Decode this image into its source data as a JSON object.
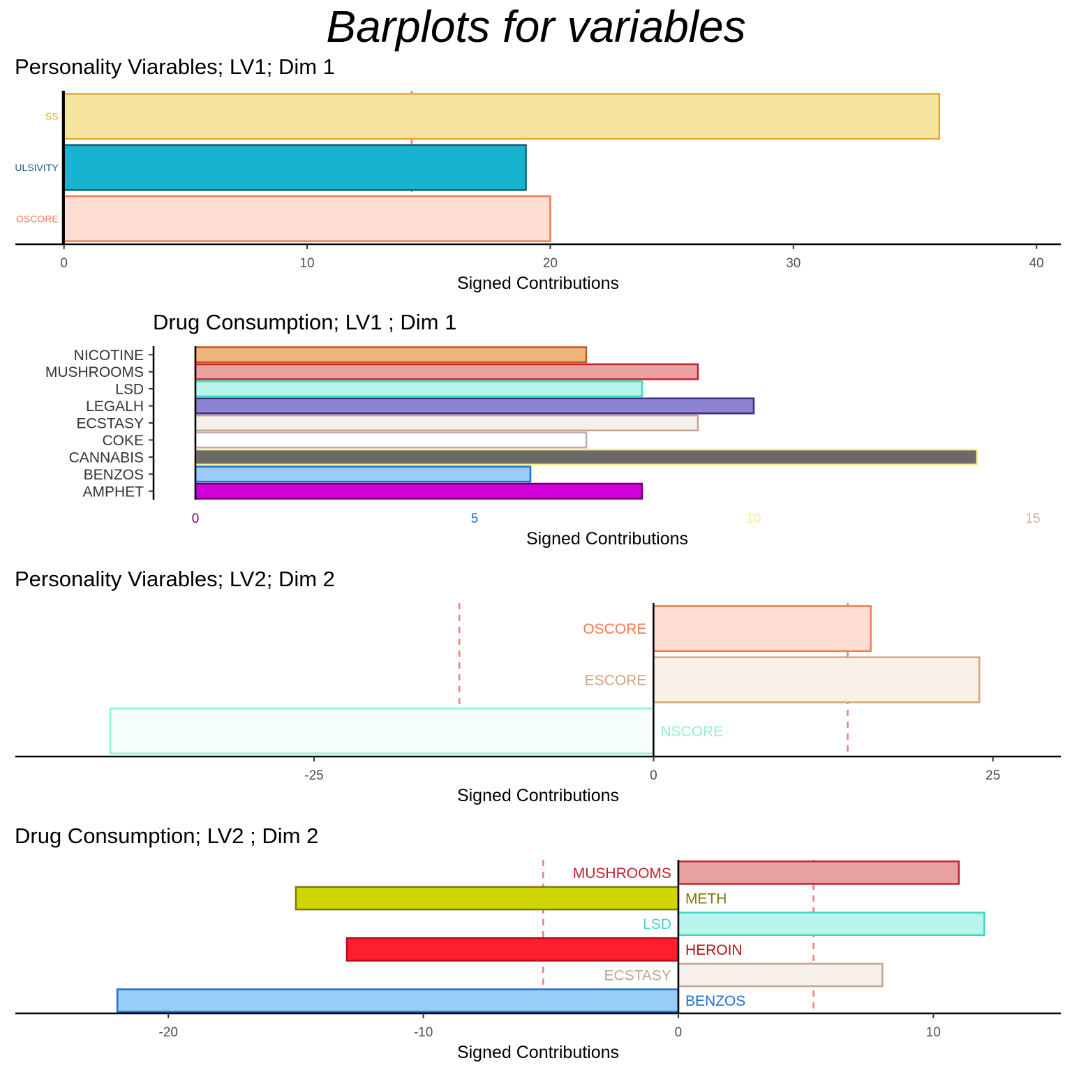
{
  "main_title": "Barplots for variables",
  "chart_data": [
    {
      "type": "bar",
      "orientation": "horizontal",
      "title": "Personality Viarables; LV1; Dim 1",
      "xlabel": "Signed Contributions",
      "ylabel": "",
      "xlim": [
        -2,
        41
      ],
      "xticks": [
        0,
        10,
        20,
        30,
        40
      ],
      "threshold": 14.3,
      "label_position": "left-outside",
      "categories": [
        "SS",
        "ULSIVITY",
        "OSCORE"
      ],
      "values": [
        36,
        19,
        20
      ],
      "fill_colors": [
        "#F7E49E",
        "#17B4D2",
        "#FEDDD2"
      ],
      "border_colors": [
        "#E8A92A",
        "#1A5C7A",
        "#F27A52"
      ],
      "label_colors": [
        "#E8A92A",
        "#1A5C7A",
        "#F27A52"
      ]
    },
    {
      "type": "bar",
      "orientation": "horizontal",
      "title": "Drug Consumption; LV1 ; Dim 1",
      "xlabel": "Signed Contributions",
      "ylabel": "",
      "xlim": [
        -0.75,
        15.5
      ],
      "xticks": [
        0,
        5,
        10,
        15
      ],
      "xtick_colors": [
        "#6B0070",
        "#1E6ED8",
        "#F5F08A",
        "#C9B6A6"
      ],
      "label_position": "axis",
      "categories": [
        "NICOTINE",
        "MUSHROOMS",
        "LSD",
        "LEGALH",
        "ECSTASY",
        "COKE",
        "CANNABIS",
        "BENZOS",
        "AMPHET"
      ],
      "values": [
        7,
        9,
        8,
        10,
        9,
        7,
        14,
        6,
        8
      ],
      "fill_colors": [
        "#EFB47E",
        "#E8A0A0",
        "#B8F5EC",
        "#8E83D0",
        "#F5F0EC",
        "#FFFFFF",
        "#6A6A6A",
        "#9ACCF8",
        "#D000D8"
      ],
      "border_colors": [
        "#C4581A",
        "#C42030",
        "#3ED8C2",
        "#3A2C80",
        "#C9A488",
        "#C4A8A8",
        "#F8F28A",
        "#1E6ED8",
        "#6B0070"
      ]
    },
    {
      "type": "bar",
      "orientation": "horizontal",
      "title": "Personality Viarables; LV2; Dim 2",
      "xlabel": "Signed Contributions",
      "ylabel": "",
      "xlim": [
        -47,
        30
      ],
      "xticks": [
        -25,
        0,
        25
      ],
      "threshold": 14.3,
      "label_position": "at-zero",
      "categories": [
        "OSCORE",
        "ESCORE",
        "NSCORE"
      ],
      "values": [
        16,
        24,
        -40
      ],
      "fill_colors": [
        "#FEDDD2",
        "#F9F0E7",
        "#F7FFFC"
      ],
      "border_colors": [
        "#F27A52",
        "#D4A67A",
        "#86F5D6"
      ],
      "label_colors": [
        "#F27A52",
        "#D4A67A",
        "#86F5D6"
      ]
    },
    {
      "type": "bar",
      "orientation": "horizontal",
      "title": "Drug Consumption; LV2 ; Dim 2",
      "xlabel": "Signed Contributions",
      "ylabel": "",
      "xlim": [
        -26,
        15
      ],
      "xticks": [
        -20,
        -10,
        0,
        10
      ],
      "threshold": 5.3,
      "label_position": "at-zero",
      "categories": [
        "MUSHROOMS",
        "METH",
        "LSD",
        "HEROIN",
        "ECSTASY",
        "BENZOS"
      ],
      "values": [
        11,
        -15,
        12,
        -13,
        8,
        -22
      ],
      "fill_colors": [
        "#E8A0A0",
        "#D2D600",
        "#B8F5EC",
        "#FF1E2E",
        "#F5F0EC",
        "#9ACCF8"
      ],
      "border_colors": [
        "#C42030",
        "#7C7A0A",
        "#3ED8C2",
        "#B0101C",
        "#C9A488",
        "#1E6ED8"
      ],
      "label_colors": [
        "#C42030",
        "#7C7A0A",
        "#3ED8C2",
        "#B0101C",
        "#C9A488",
        "#1E6ED8"
      ]
    }
  ]
}
